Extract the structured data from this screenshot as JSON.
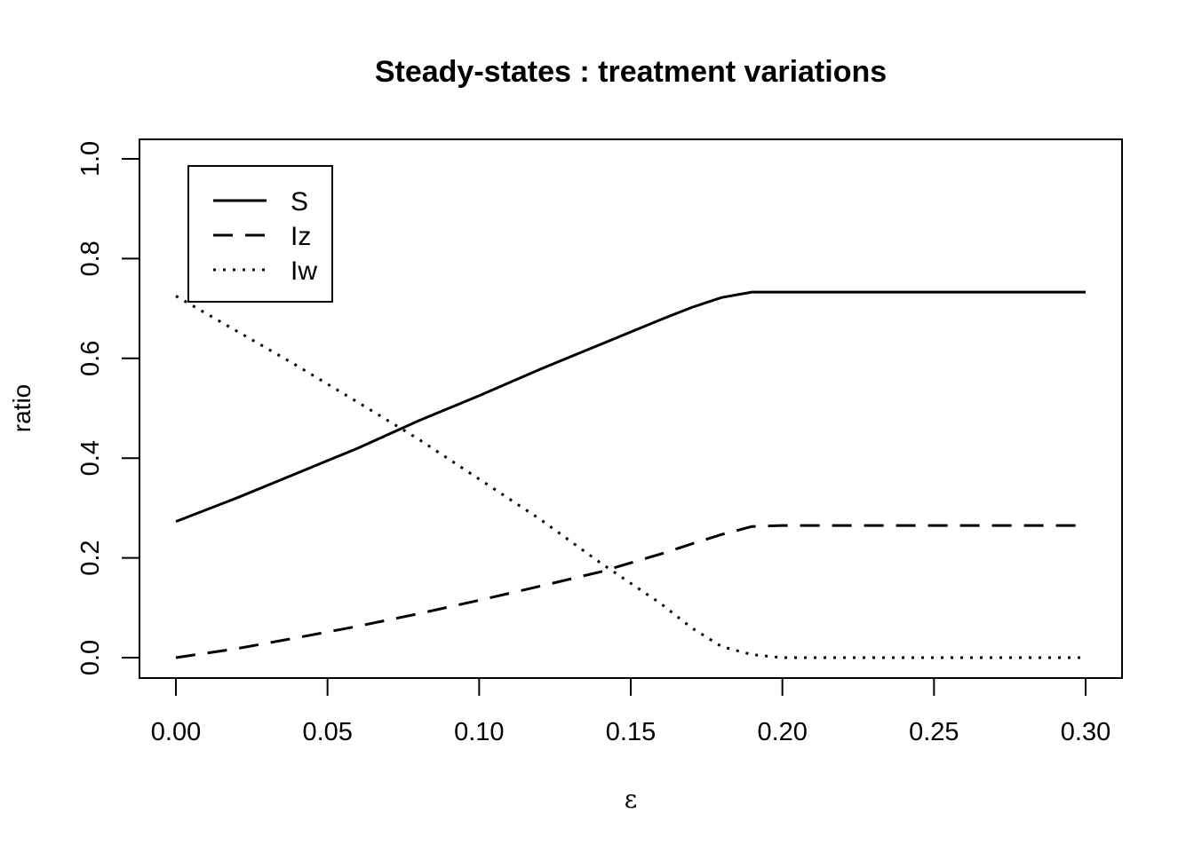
{
  "chart_data": {
    "type": "line",
    "title": "Steady-states : treatment variations",
    "xlabel": "ε",
    "ylabel": "ratio",
    "xlim": [
      0.0,
      0.3
    ],
    "ylim": [
      0.0,
      1.0
    ],
    "x_ticks": [
      0.0,
      0.05,
      0.1,
      0.15,
      0.2,
      0.25,
      0.3
    ],
    "x_tick_labels": [
      "0.00",
      "0.05",
      "0.10",
      "0.15",
      "0.20",
      "0.25",
      "0.30"
    ],
    "y_ticks": [
      0.0,
      0.2,
      0.4,
      0.6,
      0.8,
      1.0
    ],
    "y_tick_labels": [
      "0.0",
      "0.2",
      "0.4",
      "0.6",
      "0.8",
      "1.0"
    ],
    "grid": false,
    "legend": "top-left",
    "series": [
      {
        "name": "S",
        "line_style": "solid",
        "x": [
          0.0,
          0.02,
          0.04,
          0.06,
          0.08,
          0.1,
          0.12,
          0.14,
          0.16,
          0.17,
          0.18,
          0.19,
          0.2,
          0.22,
          0.25,
          0.3
        ],
        "y": [
          0.273,
          0.32,
          0.37,
          0.42,
          0.475,
          0.525,
          0.578,
          0.628,
          0.678,
          0.702,
          0.722,
          0.733,
          0.733,
          0.733,
          0.733,
          0.733
        ]
      },
      {
        "name": "Iz",
        "line_style": "dashed",
        "x": [
          0.0,
          0.02,
          0.04,
          0.06,
          0.08,
          0.1,
          0.12,
          0.14,
          0.16,
          0.17,
          0.18,
          0.19,
          0.2,
          0.22,
          0.25,
          0.3
        ],
        "y": [
          0.0,
          0.018,
          0.04,
          0.063,
          0.088,
          0.115,
          0.143,
          0.172,
          0.208,
          0.228,
          0.247,
          0.263,
          0.265,
          0.265,
          0.265,
          0.265
        ]
      },
      {
        "name": "Iw",
        "line_style": "dotted",
        "x": [
          0.0,
          0.02,
          0.04,
          0.06,
          0.08,
          0.1,
          0.12,
          0.14,
          0.16,
          0.17,
          0.18,
          0.19,
          0.2,
          0.22,
          0.25,
          0.3
        ],
        "y": [
          0.725,
          0.655,
          0.585,
          0.512,
          0.438,
          0.358,
          0.278,
          0.19,
          0.108,
          0.06,
          0.022,
          0.006,
          0.0,
          0.0,
          0.0,
          0.0
        ]
      }
    ]
  }
}
